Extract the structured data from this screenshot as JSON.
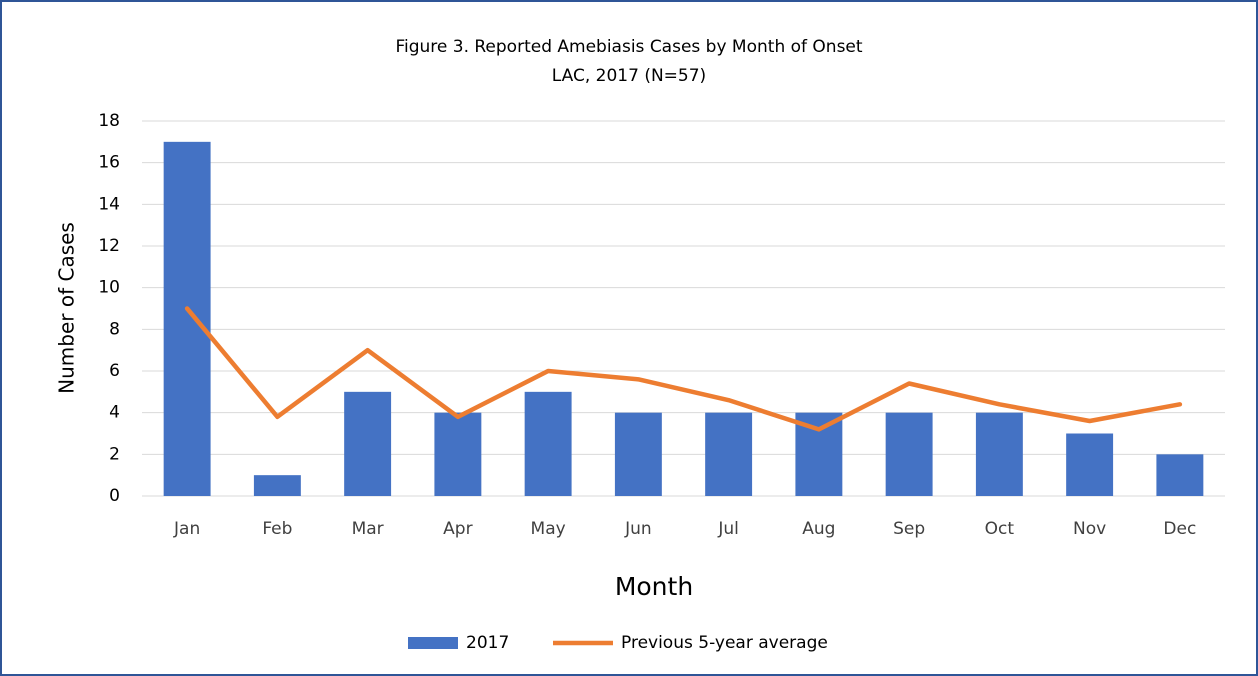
{
  "chart_data": {
    "type": "bar",
    "title": "Figure 3. Reported Amebiasis Cases by Month of Onset",
    "subtitle": "LAC, 2017 (N=57)",
    "x_label": "Month",
    "y_label": "Number of Cases",
    "categories": [
      "Jan",
      "Feb",
      "Mar",
      "Apr",
      "May",
      "Jun",
      "Jul",
      "Aug",
      "Sep",
      "Oct",
      "Nov",
      "Dec"
    ],
    "series": [
      {
        "name": "2017",
        "type": "bar",
        "color": "#4472c4",
        "values": [
          17,
          1,
          5,
          4,
          5,
          4,
          4,
          4,
          4,
          4,
          3,
          2
        ]
      },
      {
        "name": "Previous 5-year average",
        "type": "line",
        "color": "#ed7d31",
        "values": [
          9,
          3.8,
          7,
          3.8,
          6,
          5.6,
          4.6,
          3.2,
          5.4,
          4.4,
          3.6,
          4.4
        ]
      }
    ],
    "ylim": [
      0,
      18
    ],
    "yticks": [
      0,
      2,
      4,
      6,
      8,
      10,
      12,
      14,
      16,
      18
    ],
    "grid": true,
    "legend": "bottom"
  }
}
